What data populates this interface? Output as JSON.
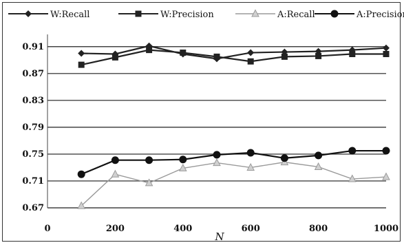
{
  "chart_data": {
    "type": "line",
    "title": "",
    "xlabel": "N",
    "ylabel": "",
    "xlim": [
      0,
      1000
    ],
    "ylim": [
      0.67,
      0.92
    ],
    "x_ticks": [
      "0",
      "200",
      "400",
      "600",
      "800",
      "1000"
    ],
    "y_ticks": [
      "0.91",
      "0.87",
      "0.83",
      "0.79",
      "0.75",
      "0.71",
      "0.67"
    ],
    "grid": "horizontal",
    "legend_position": "top",
    "x": [
      100,
      200,
      300,
      400,
      500,
      600,
      700,
      800,
      900,
      1000
    ],
    "series": [
      {
        "name": "W:Recall",
        "marker": "diamond",
        "color": "#222222",
        "values": [
          0.9,
          0.899,
          0.911,
          0.899,
          0.892,
          0.901,
          0.902,
          0.903,
          0.905,
          0.908
        ]
      },
      {
        "name": "W:Precision",
        "marker": "square",
        "color": "#222222",
        "values": [
          0.883,
          0.894,
          0.905,
          0.901,
          0.895,
          0.888,
          0.895,
          0.896,
          0.899,
          0.899
        ]
      },
      {
        "name": "A:Recall",
        "marker": "triangle",
        "color": "#9a9a9a",
        "values": [
          0.673,
          0.72,
          0.707,
          0.729,
          0.737,
          0.73,
          0.738,
          0.731,
          0.713,
          0.716
        ]
      },
      {
        "name": "A:Precision",
        "marker": "circle",
        "color": "#111111",
        "values": [
          0.72,
          0.741,
          0.741,
          0.742,
          0.749,
          0.752,
          0.744,
          0.748,
          0.755,
          0.755
        ]
      }
    ]
  }
}
